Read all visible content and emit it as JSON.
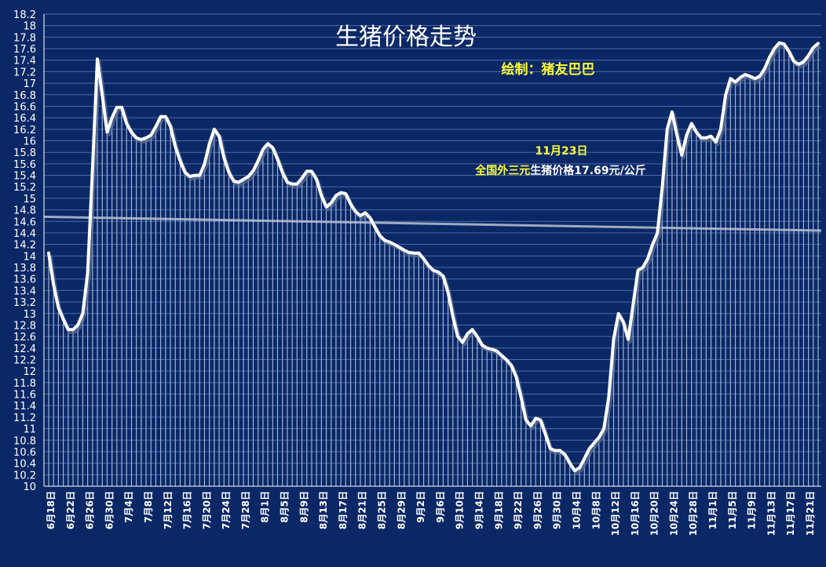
{
  "chart_data": {
    "type": "line",
    "title": "生猪价格走势",
    "credit": "绘制：猪友巴巴",
    "annotation": {
      "date": "11月23日",
      "prefix": "全国外三元",
      "suffix": "生猪价格17.69元/公斤"
    },
    "ylim": [
      10,
      18.2
    ],
    "y_ticks": [
      "10",
      "10.2",
      "10.4",
      "10.6",
      "10.8",
      "11",
      "11.2",
      "11.4",
      "11.6",
      "11.8",
      "12",
      "12.2",
      "12.4",
      "12.6",
      "12.8",
      "13",
      "13.2",
      "13.4",
      "13.6",
      "13.8",
      "14",
      "14.2",
      "14.4",
      "14.6",
      "14.8",
      "15",
      "15.2",
      "15.4",
      "15.6",
      "15.8",
      "16",
      "16.2",
      "16.4",
      "16.6",
      "16.8",
      "17",
      "17.2",
      "17.4",
      "17.6",
      "17.8",
      "18",
      "18.2"
    ],
    "x_ticks": [
      "6月18日",
      "6月22日",
      "6月26日",
      "6月30日",
      "7月4日",
      "7月8日",
      "7月12日",
      "7月16日",
      "7月20日",
      "7月24日",
      "7月28日",
      "8月1日",
      "8月5日",
      "8月9日",
      "8月13日",
      "8月17日",
      "8月21日",
      "8月25日",
      "8月29日",
      "9月2日",
      "9月6日",
      "9月10日",
      "9月14日",
      "9月18日",
      "9月22日",
      "9月26日",
      "9月30日",
      "10月4日",
      "10月8日",
      "10月12日",
      "10月16日",
      "10月20日",
      "10月24日",
      "10月28日",
      "11月1日",
      "11月5日",
      "11月9日",
      "11月13日",
      "11月17日",
      "11月21日"
    ],
    "trendline": [
      14.68,
      14.44
    ],
    "series": [
      {
        "values": [
          14.05,
          13.5,
          13.1,
          12.9,
          12.72,
          12.72,
          12.8,
          13.0,
          13.7,
          15.5,
          17.42,
          16.8,
          16.15,
          16.4,
          16.58,
          16.58,
          16.3,
          16.15,
          16.05,
          16.02,
          16.05,
          16.1,
          16.25,
          16.42,
          16.42,
          16.25,
          15.9,
          15.65,
          15.45,
          15.38,
          15.4,
          15.4,
          15.6,
          15.95,
          16.2,
          16.08,
          15.7,
          15.45,
          15.3,
          15.28,
          15.33,
          15.38,
          15.48,
          15.65,
          15.85,
          15.95,
          15.88,
          15.68,
          15.45,
          15.28,
          15.25,
          15.25,
          15.35,
          15.47,
          15.47,
          15.33,
          15.05,
          14.85,
          14.92,
          15.05,
          15.1,
          15.08,
          14.9,
          14.77,
          14.7,
          14.75,
          14.66,
          14.5,
          14.35,
          14.27,
          14.24,
          14.2,
          14.15,
          14.1,
          14.06,
          14.05,
          14.05,
          13.95,
          13.83,
          13.75,
          13.72,
          13.65,
          13.37,
          12.95,
          12.6,
          12.5,
          12.65,
          12.72,
          12.6,
          12.45,
          12.4,
          12.38,
          12.35,
          12.27,
          12.2,
          12.1,
          11.9,
          11.55,
          11.15,
          11.05,
          11.18,
          11.15,
          10.9,
          10.65,
          10.62,
          10.62,
          10.55,
          10.4,
          10.27,
          10.32,
          10.48,
          10.65,
          10.75,
          10.85,
          11.0,
          11.55,
          12.55,
          13.0,
          12.85,
          12.55,
          13.15,
          13.75,
          13.8,
          13.95,
          14.2,
          14.4,
          15.2,
          16.2,
          16.5,
          16.1,
          15.75,
          16.1,
          16.3,
          16.15,
          16.05,
          16.05,
          16.08,
          15.98,
          16.2,
          16.8,
          17.08,
          17.02,
          17.1,
          17.15,
          17.12,
          17.08,
          17.12,
          17.25,
          17.45,
          17.6,
          17.7,
          17.68,
          17.55,
          17.38,
          17.33,
          17.37,
          17.48,
          17.62,
          17.69
        ]
      }
    ]
  }
}
